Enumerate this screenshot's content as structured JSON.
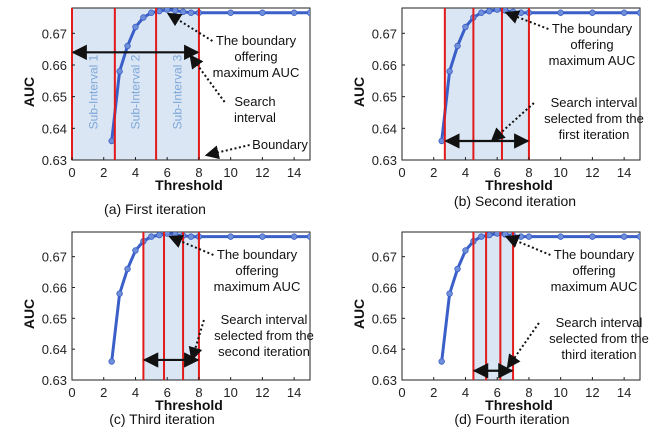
{
  "figure_captions": [
    "(a) First iteration",
    "(b) Second iteration",
    "(c) Third iteration",
    "(d) Fourth iteration"
  ],
  "colors": {
    "curve": "#3b5fc8",
    "marker": "#6f8fd8",
    "boundary_line": "#e11a1a",
    "shade": "#dbe6f5",
    "arrow": "#111111"
  },
  "chart_data": [
    {
      "type": "line",
      "caption": "(a) First iteration",
      "xlabel": "Threshold",
      "ylabel": "AUC",
      "xlim": [
        0,
        15
      ],
      "ylim": [
        0.63,
        0.678
      ],
      "xticks": [
        0,
        2,
        4,
        6,
        8,
        10,
        12,
        14
      ],
      "yticks": [
        0.63,
        0.64,
        0.65,
        0.66,
        0.67
      ],
      "ytick_labels": [
        "0.63",
        "0.64",
        "0.65",
        "0.66",
        "0.67"
      ],
      "series": [
        {
          "x": [
            2.5,
            3.0,
            3.5,
            4.0,
            4.5,
            5.0,
            5.5,
            6.0,
            6.5,
            7.0,
            7.5,
            8.0,
            10.0,
            12.0,
            14.0,
            15.0
          ],
          "y": [
            0.636,
            0.658,
            0.666,
            0.672,
            0.675,
            0.6765,
            0.677,
            0.6775,
            0.6772,
            0.6768,
            0.6765,
            0.6765,
            0.6765,
            0.6765,
            0.6765,
            0.6765
          ]
        }
      ],
      "boundaries": [
        0,
        2.7,
        5.3,
        8
      ],
      "shaded_range": [
        0,
        8
      ],
      "arrow_range": [
        0,
        8
      ],
      "arrow_y": 0.664,
      "sub_intervals": [
        {
          "label": "Sub-Interval 1",
          "x": 1.35
        },
        {
          "label": "Sub-Interval 2",
          "x": 4.0
        },
        {
          "label": "Sub-Interval 3",
          "x": 6.65
        }
      ],
      "annotations": [
        {
          "lines": [
            "The boundary",
            "offering",
            "maximum AUC"
          ],
          "target": [
            5.8,
            0.6772
          ]
        },
        {
          "lines": [
            "Search",
            "interval"
          ],
          "target": [
            7.2,
            0.664
          ]
        },
        {
          "lines": [
            "Boundary"
          ],
          "target": [
            8.2,
            0.6315
          ]
        }
      ]
    },
    {
      "type": "line",
      "caption": "(b) Second iteration",
      "xlabel": "Threshold",
      "ylabel": "AUC",
      "xlim": [
        0,
        15
      ],
      "ylim": [
        0.63,
        0.678
      ],
      "xticks": [
        0,
        2,
        4,
        6,
        8,
        10,
        12,
        14
      ],
      "yticks": [
        0.63,
        0.64,
        0.65,
        0.66,
        0.67
      ],
      "ytick_labels": [
        "0.63",
        "0.64",
        "0.65",
        "0.66",
        "0.67"
      ],
      "series": [
        {
          "x": [
            2.5,
            3.0,
            3.5,
            4.0,
            4.5,
            5.0,
            5.5,
            6.0,
            6.5,
            7.0,
            7.5,
            8.0,
            10.0,
            12.0,
            14.0,
            15.0
          ],
          "y": [
            0.636,
            0.658,
            0.666,
            0.672,
            0.675,
            0.6765,
            0.677,
            0.6775,
            0.6772,
            0.6768,
            0.6765,
            0.6765,
            0.6765,
            0.6765,
            0.6765,
            0.6765
          ]
        }
      ],
      "boundaries": [
        2.7,
        4.5,
        6.3,
        8
      ],
      "shaded_range": [
        2.7,
        8
      ],
      "arrow_range": [
        2.7,
        8
      ],
      "arrow_y": 0.636,
      "annotations": [
        {
          "lines": [
            "The boundary",
            "offering",
            "maximum AUC"
          ],
          "target": [
            6.3,
            0.6775
          ]
        },
        {
          "lines": [
            "Search interval",
            "selected from the",
            "first iteration"
          ],
          "target": [
            5.4,
            0.636
          ]
        }
      ]
    },
    {
      "type": "line",
      "caption": "(c) Third iteration",
      "xlabel": "Threshold",
      "ylabel": "AUC",
      "xlim": [
        0,
        15
      ],
      "ylim": [
        0.63,
        0.678
      ],
      "xticks": [
        0,
        2,
        4,
        6,
        8,
        10,
        12,
        14
      ],
      "yticks": [
        0.63,
        0.64,
        0.65,
        0.66,
        0.67
      ],
      "ytick_labels": [
        "0.63",
        "0.64",
        "0.65",
        "0.66",
        "0.67"
      ],
      "series": [
        {
          "x": [
            2.5,
            3.0,
            3.5,
            4.0,
            4.5,
            5.0,
            5.5,
            6.0,
            6.5,
            7.0,
            7.5,
            8.0,
            10.0,
            12.0,
            14.0,
            15.0
          ],
          "y": [
            0.636,
            0.658,
            0.666,
            0.672,
            0.675,
            0.6765,
            0.677,
            0.6775,
            0.6772,
            0.6768,
            0.6765,
            0.6765,
            0.6765,
            0.6765,
            0.6765,
            0.6765
          ]
        }
      ],
      "boundaries": [
        4.5,
        5.8,
        7.0,
        8
      ],
      "shaded_range": [
        4.5,
        8
      ],
      "arrow_range": [
        4.5,
        8
      ],
      "arrow_y": 0.6365,
      "annotations": [
        {
          "lines": [
            "The boundary",
            "offering",
            "maximum AUC"
          ],
          "target": [
            5.9,
            0.6775
          ]
        },
        {
          "lines": [
            "Search interval",
            "selected from the",
            "second iteration"
          ],
          "target": [
            7.3,
            0.6365
          ]
        }
      ]
    },
    {
      "type": "line",
      "caption": "(d) Fourth iteration",
      "xlabel": "Threshold",
      "ylabel": "AUC",
      "xlim": [
        0,
        15
      ],
      "ylim": [
        0.63,
        0.678
      ],
      "xticks": [
        0,
        2,
        4,
        6,
        8,
        10,
        12,
        14
      ],
      "yticks": [
        0.63,
        0.64,
        0.65,
        0.66,
        0.67
      ],
      "ytick_labels": [
        "0.63",
        "0.64",
        "0.65",
        "0.66",
        "0.67"
      ],
      "series": [
        {
          "x": [
            2.5,
            3.0,
            3.5,
            4.0,
            4.5,
            5.0,
            5.5,
            6.0,
            6.5,
            7.0,
            7.5,
            8.0,
            10.0,
            12.0,
            14.0,
            15.0
          ],
          "y": [
            0.636,
            0.658,
            0.666,
            0.672,
            0.675,
            0.6765,
            0.677,
            0.6775,
            0.6772,
            0.6768,
            0.6765,
            0.6765,
            0.6765,
            0.6765,
            0.6765,
            0.6765
          ]
        }
      ],
      "boundaries": [
        4.5,
        5.3,
        6.2,
        7.0
      ],
      "shaded_range": [
        4.5,
        7.0
      ],
      "arrow_range": [
        4.5,
        7.0
      ],
      "arrow_y": 0.633,
      "annotations": [
        {
          "lines": [
            "The boundary",
            "offering",
            "maximum AUC"
          ],
          "target": [
            6.3,
            0.6775
          ]
        },
        {
          "lines": [
            "Search interval",
            "selected from the",
            "third iteration"
          ],
          "target": [
            6.4,
            0.634
          ]
        }
      ]
    }
  ]
}
